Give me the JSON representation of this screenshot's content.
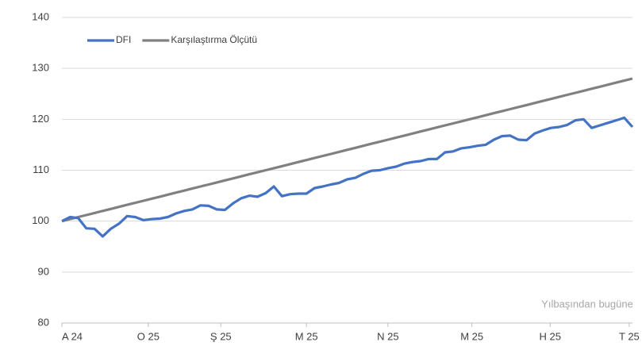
{
  "chart_data": {
    "type": "line",
    "annotation": "Yılbaşından bugüne",
    "x": [
      0,
      1,
      2,
      3,
      4,
      5,
      6,
      7,
      8,
      9,
      10,
      11,
      12,
      13,
      14,
      15,
      16,
      17,
      18,
      19,
      20,
      21,
      22,
      23,
      24,
      25,
      26,
      27,
      28,
      29,
      30,
      31,
      32,
      33,
      34,
      35,
      36,
      37,
      38,
      39,
      40,
      41,
      42,
      43,
      44,
      45,
      46,
      47,
      48,
      49,
      50,
      51,
      52,
      53,
      54,
      55,
      56,
      57,
      58,
      59,
      60,
      61,
      62,
      63,
      64,
      65,
      66,
      67,
      68,
      69,
      70
    ],
    "series": [
      {
        "name": "DFI",
        "color": "#4472c4",
        "values": [
          100,
          100.8,
          100.6,
          98.6,
          98.5,
          97.0,
          98.5,
          99.5,
          101,
          100.8,
          100.2,
          100.4,
          100.5,
          100.8,
          101.5,
          102,
          102.3,
          103.1,
          103,
          102.3,
          102.2,
          103.5,
          104.5,
          105,
          104.8,
          105.5,
          106.8,
          104.9,
          105.3,
          105.4,
          105.4,
          106.5,
          106.8,
          107.2,
          107.5,
          108.2,
          108.5,
          109.3,
          109.9,
          110,
          110.4,
          110.7,
          111.3,
          111.6,
          111.8,
          112.2,
          112.2,
          113.5,
          113.7,
          114.3,
          114.5,
          114.8,
          115,
          116,
          116.7,
          116.8,
          116,
          115.9,
          117.2,
          117.8,
          118.3,
          118.5,
          118.9,
          119.8,
          120,
          118.3,
          118.8,
          119.3,
          119.8,
          120.3,
          118.5
        ]
      },
      {
        "name": "Karşılaştırma Ölçütü",
        "color": "#808080",
        "values": [
          100,
          100.4,
          100.8,
          101.2,
          101.6,
          102,
          102.4,
          102.8,
          103.2,
          103.6,
          104,
          104.4,
          104.8,
          105.2,
          105.6,
          106,
          106.4,
          106.8,
          107.2,
          107.6,
          108,
          108.4,
          108.8,
          109.2,
          109.6,
          110,
          110.4,
          110.8,
          111.2,
          111.6,
          112,
          112.4,
          112.8,
          113.2,
          113.6,
          114,
          114.4,
          114.8,
          115.2,
          115.6,
          116,
          116.4,
          116.8,
          117.2,
          117.6,
          118,
          118.4,
          118.8,
          119.2,
          119.6,
          120,
          120.4,
          120.8,
          121.2,
          121.6,
          122,
          122.4,
          122.8,
          123.2,
          123.6,
          124,
          124.4,
          124.8,
          125.2,
          125.6,
          126,
          126.4,
          126.8,
          127.2,
          127.6,
          128
        ]
      }
    ],
    "xlim": [
      0,
      70
    ],
    "xticks": [
      {
        "value": 0,
        "label": "A 24"
      },
      {
        "value": 10.6,
        "label": "O 25"
      },
      {
        "value": 19.5,
        "label": "Ş 25"
      },
      {
        "value": 30,
        "label": "M 25"
      },
      {
        "value": 40,
        "label": "N 25"
      },
      {
        "value": 50.3,
        "label": "M 25"
      },
      {
        "value": 59.9,
        "label": "H 25"
      },
      {
        "value": 69.6,
        "label": "T 25"
      }
    ],
    "ylim": [
      80,
      140
    ],
    "yticks": [
      80,
      90,
      100,
      110,
      120,
      130,
      140
    ],
    "grid": true
  }
}
